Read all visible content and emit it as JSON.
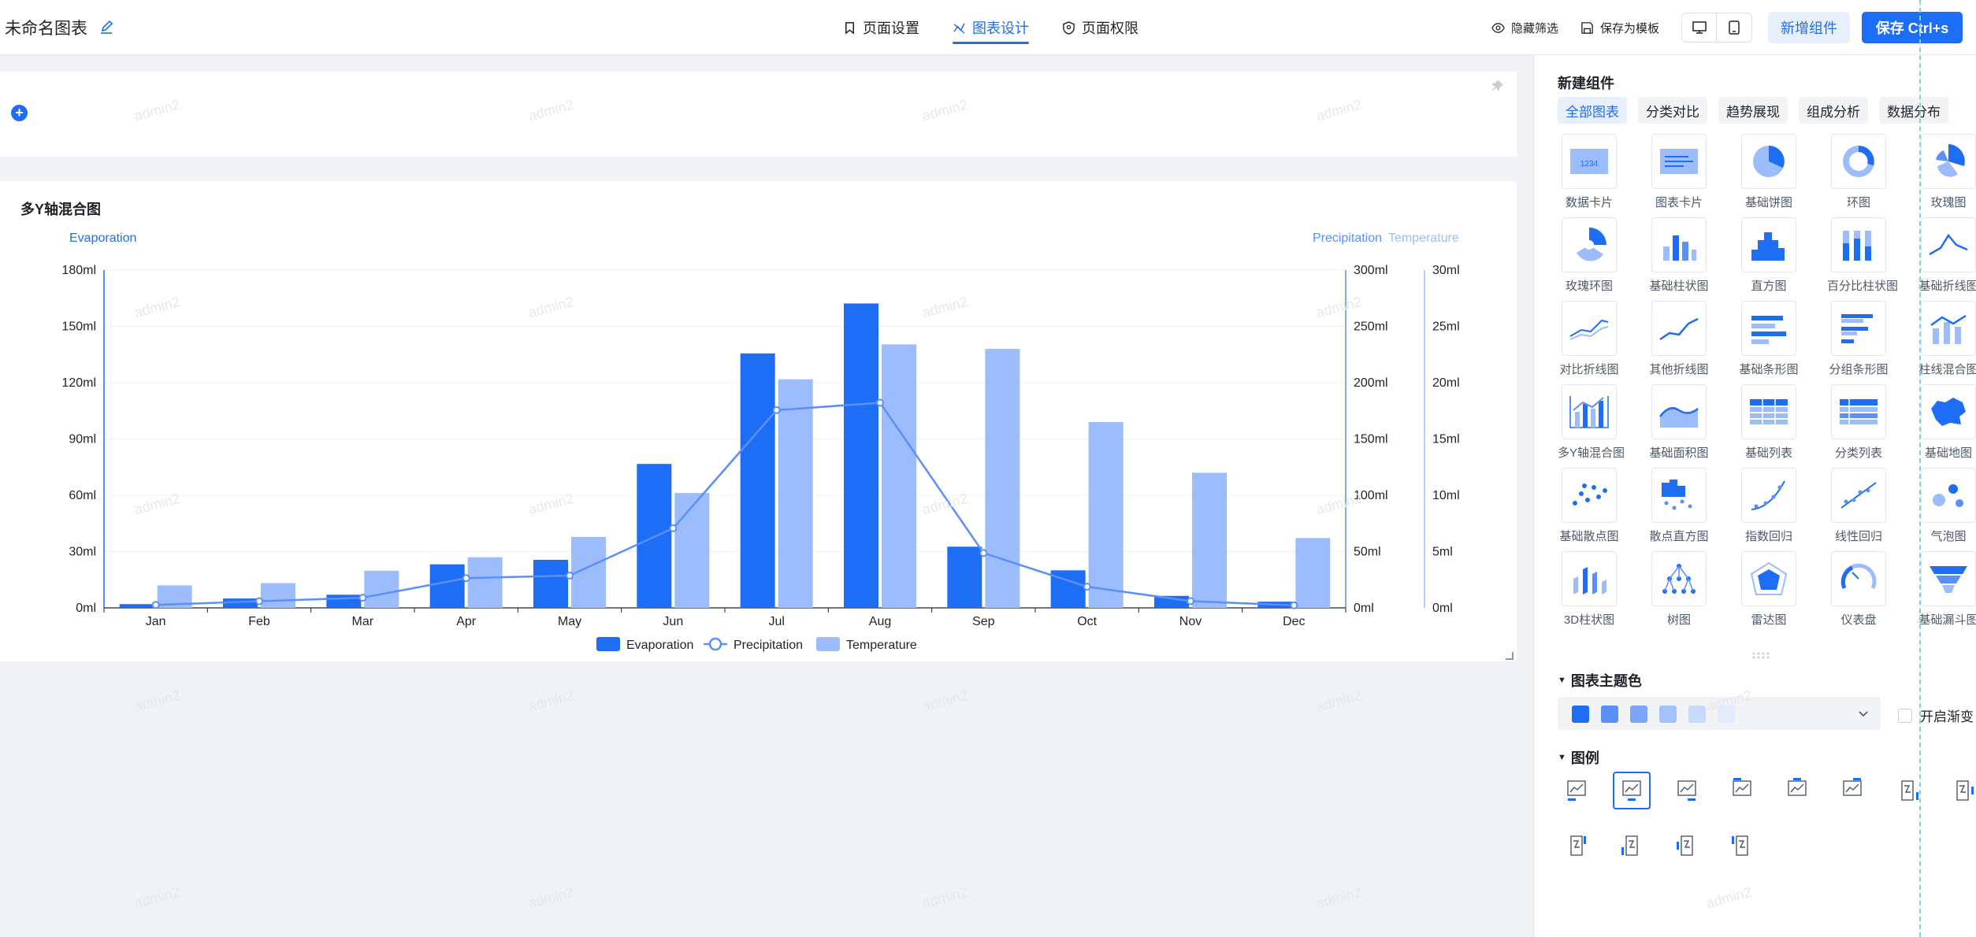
{
  "header": {
    "doc_title": "未命名图表",
    "tabs": [
      {
        "label": "页面设置",
        "icon": "bookmark-icon"
      },
      {
        "label": "图表设计",
        "icon": "chart-design-icon",
        "active": true
      },
      {
        "label": "页面权限",
        "icon": "shield-icon"
      }
    ],
    "hide_filter": "隐藏筛选",
    "save_template": "保存为模板",
    "add_component": "新增组件",
    "save": "保存 Ctrl+s"
  },
  "watermark": "admin2",
  "card": {
    "title": "多Y轴混合图"
  },
  "chart_data": {
    "type": "bar",
    "categories": [
      "Jan",
      "Feb",
      "Mar",
      "Apr",
      "May",
      "Jun",
      "Jul",
      "Aug",
      "Sep",
      "Oct",
      "Nov",
      "Dec"
    ],
    "series": [
      {
        "name": "Evaporation",
        "type": "bar",
        "axis": "left",
        "color": "#1d6df5",
        "values": [
          2,
          5,
          7,
          23.2,
          25.6,
          76.7,
          135.6,
          162.2,
          32.6,
          20,
          6.4,
          3.3
        ]
      },
      {
        "name": "Precipitation",
        "type": "line",
        "axis": "right1",
        "color": "#5b8ff9",
        "values": [
          2.6,
          5.9,
          9,
          26.4,
          28.7,
          70.7,
          175.6,
          182.2,
          48.7,
          18.8,
          6,
          2.3
        ]
      },
      {
        "name": "Temperature",
        "type": "bar",
        "axis": "right2",
        "color": "#9dbcfb",
        "values": [
          2,
          2.2,
          3.3,
          4.5,
          6.3,
          10.2,
          20.3,
          23.4,
          23,
          16.5,
          12,
          6.2
        ]
      }
    ],
    "axes": {
      "left": {
        "name": "Evaporation",
        "ticks": [
          "0ml",
          "30ml",
          "60ml",
          "90ml",
          "120ml",
          "150ml",
          "180ml"
        ],
        "max": 180
      },
      "right1": {
        "name": "Precipitation",
        "ticks": [
          "0ml",
          "50ml",
          "100ml",
          "150ml",
          "200ml",
          "250ml",
          "300ml"
        ],
        "max": 300
      },
      "right2": {
        "name": "Temperature",
        "ticks": [
          "0ml",
          "5ml",
          "10ml",
          "15ml",
          "20ml",
          "25ml",
          "30ml"
        ],
        "max": 30
      }
    },
    "grid": true,
    "legend_position": "bottom-center"
  },
  "panel": {
    "title": "新建组件",
    "tabs": [
      "全部图表",
      "分类对比",
      "趋势展现",
      "组成分析",
      "数据分布"
    ],
    "components": [
      {
        "label": "数据卡片",
        "icon": "data-card-icon"
      },
      {
        "label": "图表卡片",
        "icon": "chart-card-icon"
      },
      {
        "label": "基础饼图",
        "icon": "pie-icon"
      },
      {
        "label": "环图",
        "icon": "donut-icon"
      },
      {
        "label": "玫瑰图",
        "icon": "rose-icon"
      },
      {
        "label": "玫瑰环图",
        "icon": "rose-ring-icon"
      },
      {
        "label": "基础柱状图",
        "icon": "bar-icon"
      },
      {
        "label": "直方图",
        "icon": "histogram-icon"
      },
      {
        "label": "百分比柱状图",
        "icon": "percent-bar-icon"
      },
      {
        "label": "基础折线图",
        "icon": "line-icon"
      },
      {
        "label": "对比折线图",
        "icon": "compare-line-icon"
      },
      {
        "label": "其他折线图",
        "icon": "other-line-icon"
      },
      {
        "label": "基础条形图",
        "icon": "hbar-icon"
      },
      {
        "label": "分组条形图",
        "icon": "group-hbar-icon"
      },
      {
        "label": "柱线混合图",
        "icon": "bar-line-icon"
      },
      {
        "label": "多Y轴混合图",
        "icon": "multi-y-icon"
      },
      {
        "label": "基础面积图",
        "icon": "area-icon"
      },
      {
        "label": "基础列表",
        "icon": "list-icon"
      },
      {
        "label": "分类列表",
        "icon": "group-list-icon"
      },
      {
        "label": "基础地图",
        "icon": "map-icon"
      },
      {
        "label": "基础散点图",
        "icon": "scatter-icon"
      },
      {
        "label": "散点直方图",
        "icon": "scatter-hist-icon"
      },
      {
        "label": "指数回归",
        "icon": "exp-regression-icon"
      },
      {
        "label": "线性回归",
        "icon": "linear-regression-icon"
      },
      {
        "label": "气泡图",
        "icon": "bubble-icon"
      },
      {
        "label": "3D柱状图",
        "icon": "bar3d-icon"
      },
      {
        "label": "树图",
        "icon": "tree-icon"
      },
      {
        "label": "雷达图",
        "icon": "radar-icon"
      },
      {
        "label": "仪表盘",
        "icon": "gauge-icon"
      },
      {
        "label": "基础漏斗图",
        "icon": "funnel-icon"
      }
    ],
    "theme_section": "图表主题色",
    "theme_colors": [
      "#1d6df5",
      "#5b8ff9",
      "#7aa5fa",
      "#a3c1fc",
      "#c7d9fd",
      "#e3ecfe"
    ],
    "gradient_label": "开启渐变",
    "legend_section": "图例"
  }
}
